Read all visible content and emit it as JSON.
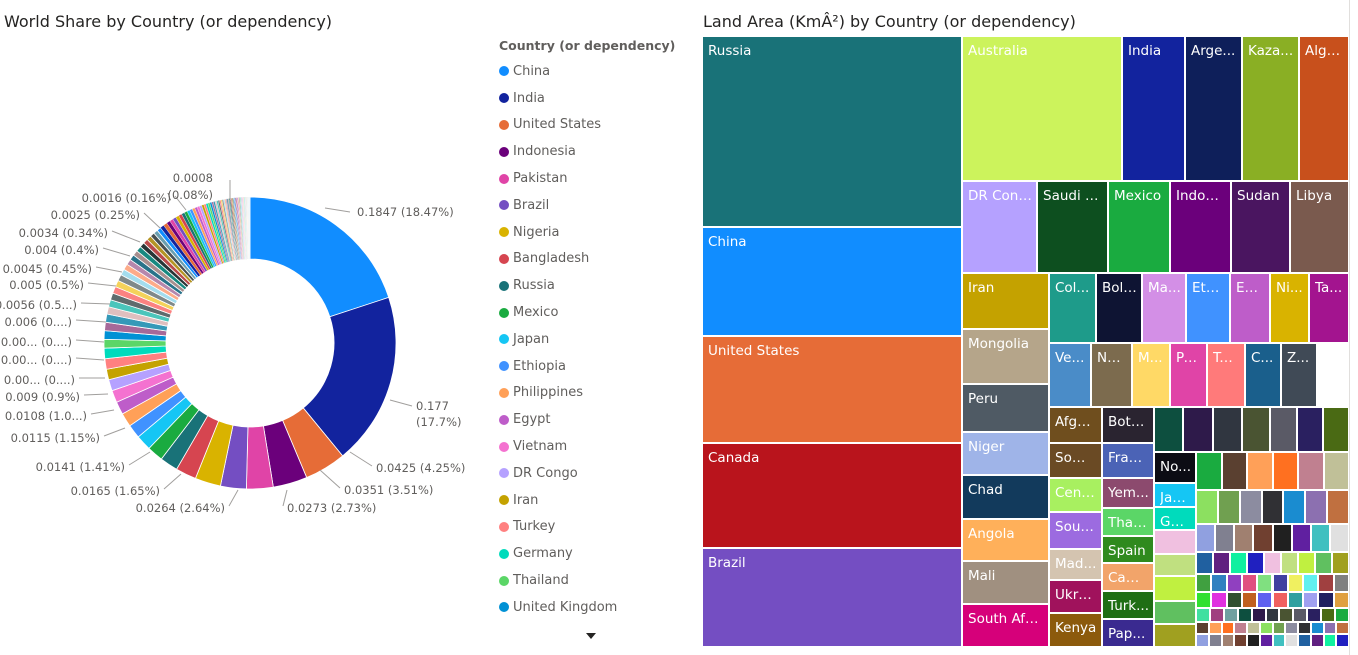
{
  "donut_title": "World Share by Country (or dependency)",
  "treemap_title": "Land Area (KmÂ²) by Country (or dependency)",
  "legend_title": "Country (or dependency)",
  "legend_more_icon": "chevron-down-icon",
  "chart_data": [
    {
      "type": "donut",
      "title": "World Share by Country (or dependency)",
      "legend_title": "Country (or dependency)",
      "categories": [
        "China",
        "India",
        "United States",
        "Indonesia",
        "Pakistan",
        "Brazil",
        "Nigeria",
        "Bangladesh",
        "Russia",
        "Mexico",
        "Japan",
        "Ethiopia",
        "Philippines",
        "Egypt",
        "Vietnam",
        "DR Congo",
        "Iran",
        "Turkey",
        "Germany",
        "Thailand",
        "United Kingdom"
      ],
      "colors": [
        "#118DFF",
        "#12239E",
        "#E66C37",
        "#6B007B",
        "#E044A7",
        "#744EC2",
        "#D9B300",
        "#D64550",
        "#197278",
        "#1AAB40",
        "#15C6F4",
        "#4092FF",
        "#FFA058",
        "#BE5DC9",
        "#F472D0",
        "#B5A1FF",
        "#C4A200",
        "#FF8080",
        "#00DBBC",
        "#5BD667",
        "#0091D5"
      ],
      "values": [
        0.1847,
        0.177,
        0.0425,
        0.0351,
        0.0273,
        0.0264,
        0.0264,
        0.0212,
        0.0185,
        0.0165,
        0.0159,
        0.0141,
        0.0141,
        0.0132,
        0.0125,
        0.0115,
        0.0108,
        0.0108,
        0.0107,
        0.009,
        0.0087
      ],
      "other_values": [
        0.0086,
        0.0084,
        0.0075,
        0.0073,
        0.0071,
        0.0071,
        0.0067,
        0.0065,
        0.0062,
        0.006,
        0.0058,
        0.0056,
        0.0055,
        0.0054,
        0.0051,
        0.005,
        0.0048,
        0.0045,
        0.0044,
        0.0042,
        0.004,
        0.0039,
        0.0037,
        0.0036,
        0.0035,
        0.0034,
        0.0033,
        0.0032,
        0.003,
        0.0029,
        0.0028,
        0.0027,
        0.0026,
        0.0025,
        0.0024,
        0.0023,
        0.0022,
        0.0021,
        0.002,
        0.0019,
        0.0018,
        0.0017,
        0.0016,
        0.0016,
        0.0015,
        0.0014,
        0.0013,
        0.0013,
        0.0012,
        0.0012,
        0.0011,
        0.0011,
        0.001,
        0.001,
        0.0009,
        0.0009,
        0.0009,
        0.0008,
        0.0008,
        0.0008,
        0.0007,
        0.0007,
        0.0007,
        0.0007,
        0.0006,
        0.0006,
        0.0006,
        0.0006,
        0.0005,
        0.0005,
        0.0005,
        0.0005,
        0.0005,
        0.0004,
        0.0004,
        0.0004,
        0.0004,
        0.0004,
        0.0004,
        0.0003,
        0.0003,
        0.0003,
        0.0003,
        0.0003,
        0.0003,
        0.0003,
        0.0002,
        0.0002,
        0.0002,
        0.0002,
        0.0002,
        0.0002,
        0.0002,
        0.0002,
        0.0001,
        0.0001,
        0.0001,
        0.0001,
        0.0001,
        0.0001,
        0.0001,
        0.0001,
        0.0001,
        0.0001,
        0.0001,
        0.0001,
        0.0001,
        0.0001,
        0.0001,
        0.0001
      ],
      "data_labels": [
        {
          "value": 0.1847,
          "text": "0.1847 (18.47%)"
        },
        {
          "value": 0.177,
          "text": "0.177",
          "text2": "(17.7%)"
        },
        {
          "value": 0.0425,
          "text": "0.0425 (4.25%)"
        },
        {
          "value": 0.0351,
          "text": "0.0351 (3.51%)"
        },
        {
          "value": 0.0273,
          "text": "0.0273 (2.73%)"
        },
        {
          "value": 0.0264,
          "text": "0.0264 (2.64%)"
        },
        {
          "value": 0.0165,
          "text": "0.0165 (1.65%)"
        },
        {
          "value": 0.0141,
          "text": "0.0141 (1.41%)"
        },
        {
          "value": 0.0115,
          "text": "0.0115 (1.15%)"
        },
        {
          "value": 0.0108,
          "text": "0.0108 (1.0...)"
        },
        {
          "value": 0.009,
          "text": "0.009 (0.9%)"
        },
        {
          "value": null,
          "text": "0.00... (0....)"
        },
        {
          "value": null,
          "text": "0.00... (0....)"
        },
        {
          "value": null,
          "text": "0.00... (0....)"
        },
        {
          "value": 0.006,
          "text": "0.006 (0....)"
        },
        {
          "value": 0.0056,
          "text": "0.0056 (0.5...)"
        },
        {
          "value": 0.005,
          "text": "0.005 (0.5%)"
        },
        {
          "value": 0.0045,
          "text": "0.0045 (0.45%)"
        },
        {
          "value": 0.004,
          "text": "0.004 (0.4%)"
        },
        {
          "value": 0.0034,
          "text": "0.0034 (0.34%)"
        },
        {
          "value": 0.0025,
          "text": "0.0025 (0.25%)"
        },
        {
          "value": 0.0016,
          "text": "0.0016 (0.16%)"
        },
        {
          "value": 0.0008,
          "text": "0.0008",
          "text2": "(0.08%)"
        }
      ]
    },
    {
      "type": "treemap",
      "title": "Land Area (KmÂ²) by Country (or dependency)",
      "labeled_tiles": [
        {
          "label": "Russia",
          "color": "#197278"
        },
        {
          "label": "China",
          "color": "#118DFF"
        },
        {
          "label": "United States",
          "color": "#E66C37"
        },
        {
          "label": "Canada",
          "color": "#B9141C"
        },
        {
          "label": "Brazil",
          "color": "#744EC2"
        },
        {
          "label": "Australia",
          "color": "#CCF35C"
        },
        {
          "label": "India",
          "color": "#12239E"
        },
        {
          "label": "Arge...",
          "color": "#0E1F5A"
        },
        {
          "label": "Kaza...",
          "color": "#8AAF24"
        },
        {
          "label": "Alge...",
          "color": "#C8501C"
        },
        {
          "label": "DR Congo",
          "color": "#B5A1FF"
        },
        {
          "label": "Saudi A...",
          "color": "#0D4F1F"
        },
        {
          "label": "Mexico",
          "color": "#1AAB40"
        },
        {
          "label": "Indon...",
          "color": "#6B007B"
        },
        {
          "label": "Sudan",
          "color": "#4A1560"
        },
        {
          "label": "Libya",
          "color": "#7A5A4E"
        },
        {
          "label": "Iran",
          "color": "#C4A200"
        },
        {
          "label": "Col...",
          "color": "#1E9B8A"
        },
        {
          "label": "Boli...",
          "color": "#0E1433"
        },
        {
          "label": "Ma...",
          "color": "#D38FE6"
        },
        {
          "label": "Eth...",
          "color": "#4092FF"
        },
        {
          "label": "Eg...",
          "color": "#BE5DC9"
        },
        {
          "label": "Ni...",
          "color": "#D9B300"
        },
        {
          "label": "Ta...",
          "color": "#A3148F"
        },
        {
          "label": "Mongolia",
          "color": "#B5A58A"
        },
        {
          "label": "Ve...",
          "color": "#4A8CC8"
        },
        {
          "label": "Na...",
          "color": "#7C6B4E"
        },
        {
          "label": "M...",
          "color": "#FFD966"
        },
        {
          "label": "Pa...",
          "color": "#E044A7"
        },
        {
          "label": "Tu...",
          "color": "#FF7A7A"
        },
        {
          "label": "C...",
          "color": "#1A5F8C"
        },
        {
          "label": "Z...",
          "color": "#404A56"
        },
        {
          "label": "Peru",
          "color": "#4F5A64"
        },
        {
          "label": "Afgh...",
          "color": "#6F4E1E"
        },
        {
          "label": "Bots...",
          "color": "#2A2430"
        },
        {
          "label": "Niger",
          "color": "#9FB4E8"
        },
        {
          "label": "Som...",
          "color": "#6A4A24"
        },
        {
          "label": "Fran...",
          "color": "#4B63B6"
        },
        {
          "label": "No...",
          "color": "#0C0C14"
        },
        {
          "label": "Chad",
          "color": "#123A5C"
        },
        {
          "label": "Cent...",
          "color": "#A8F060"
        },
        {
          "label": "Yem...",
          "color": "#8C4A6E"
        },
        {
          "label": "Jap...",
          "color": "#15C6F4"
        },
        {
          "label": "Thail...",
          "color": "#5BD667"
        },
        {
          "label": "Ge...",
          "color": "#00DBBC"
        },
        {
          "label": "Angola",
          "color": "#FFB05A"
        },
        {
          "label": "Sout...",
          "color": "#9C6BE0"
        },
        {
          "label": "Spain",
          "color": "#2F8A1E"
        },
        {
          "label": "Mali",
          "color": "#A09080"
        },
        {
          "label": "Mad...",
          "color": "#D4C4B0"
        },
        {
          "label": "Cam...",
          "color": "#F2A46A"
        },
        {
          "label": "South Africa",
          "color": "#D6007A"
        },
        {
          "label": "Ukrai...",
          "color": "#A0125C"
        },
        {
          "label": "Turk...",
          "color": "#1F6E14"
        },
        {
          "label": "Kenya",
          "color": "#8C5A0C"
        },
        {
          "label": "Pap...",
          "color": "#3A2A90"
        }
      ]
    }
  ]
}
